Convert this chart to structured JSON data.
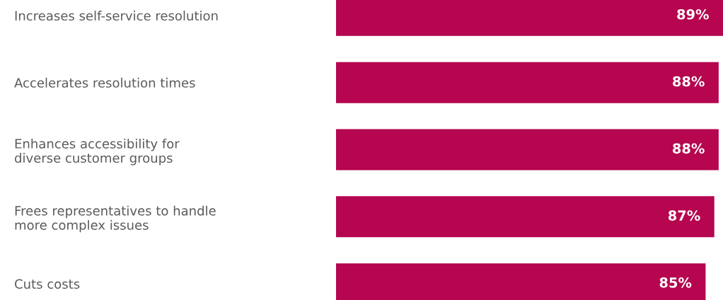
{
  "chart_data": {
    "type": "bar",
    "orientation": "horizontal",
    "categories": [
      "Increases self-service resolution",
      "Accelerates resolution times",
      "Enhances accessibility for\ndiverse customer groups",
      "Frees representatives to handle\nmore complex issues",
      "Cuts costs"
    ],
    "values": [
      89,
      88,
      88,
      87,
      85
    ],
    "value_labels": [
      "89%",
      "88%",
      "88%",
      "87%",
      "85%"
    ],
    "color": "#b5064f",
    "tick_labels": "y",
    "grid": false,
    "legend": false
  }
}
